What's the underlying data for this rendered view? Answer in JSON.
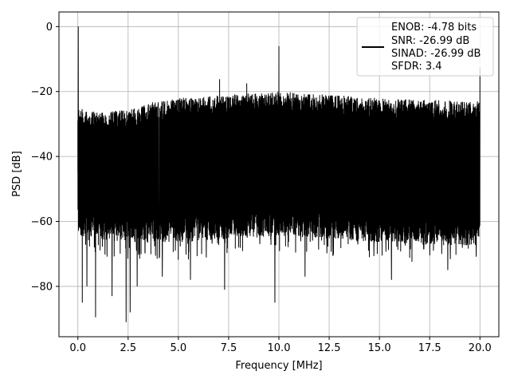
{
  "chart_data": {
    "type": "line",
    "title": "",
    "xlabel": "Frequency [MHz]",
    "ylabel": "PSD [dB]",
    "xlim": [
      -0.94,
      20.94
    ],
    "ylim": [
      -95.5,
      4.5
    ],
    "xticks": [
      0.0,
      2.5,
      5.0,
      7.5,
      10.0,
      12.5,
      15.0,
      17.5,
      20.0
    ],
    "xtick_labels": [
      "0.0",
      "2.5",
      "5.0",
      "7.5",
      "10.0",
      "12.5",
      "15.0",
      "17.5",
      "20.0"
    ],
    "yticks": [
      0,
      -20,
      -40,
      -60,
      -80
    ],
    "ytick_labels": [
      "0",
      "−20",
      "−40",
      "−60",
      "−80"
    ],
    "grid": true,
    "legend_position": "top-right",
    "series": [
      {
        "name": "",
        "color": "#000000",
        "x_range": [
          0.0,
          20.0
        ],
        "upper_envelope": [
          [
            0.0,
            -25.0
          ],
          [
            1.0,
            -26.5
          ],
          [
            2.5,
            -25.5
          ],
          [
            3.5,
            -23.5
          ],
          [
            5.0,
            -22.0
          ],
          [
            7.5,
            -21.0
          ],
          [
            10.0,
            -20.0
          ],
          [
            12.5,
            -21.0
          ],
          [
            15.0,
            -22.0
          ],
          [
            17.5,
            -22.5
          ],
          [
            20.0,
            -23.0
          ]
        ],
        "lower_envelope": [
          [
            0.0,
            -62.0
          ],
          [
            2.5,
            -64.0
          ],
          [
            5.0,
            -64.0
          ],
          [
            7.5,
            -63.0
          ],
          [
            10.0,
            -62.0
          ],
          [
            12.5,
            -63.0
          ],
          [
            15.0,
            -64.0
          ],
          [
            17.5,
            -65.0
          ],
          [
            20.0,
            -65.0
          ]
        ],
        "peaks": [
          {
            "x": 0.02,
            "y": 0.0
          },
          {
            "x": 10.0,
            "y": -6.0
          },
          {
            "x": 20.0,
            "y": -12.5
          },
          {
            "x": 7.05,
            "y": -16.2
          },
          {
            "x": 8.4,
            "y": -17.5
          }
        ],
        "dips": [
          {
            "x": 0.22,
            "y": -85.0
          },
          {
            "x": 0.45,
            "y": -80.0
          },
          {
            "x": 0.88,
            "y": -89.5
          },
          {
            "x": 1.7,
            "y": -83.0
          },
          {
            "x": 2.4,
            "y": -91.0
          },
          {
            "x": 2.6,
            "y": -88.0
          },
          {
            "x": 2.95,
            "y": -80.0
          },
          {
            "x": 4.2,
            "y": -77.0
          },
          {
            "x": 5.6,
            "y": -78.0
          },
          {
            "x": 7.3,
            "y": -81.0
          },
          {
            "x": 9.8,
            "y": -85.0
          },
          {
            "x": 11.3,
            "y": -77.0
          },
          {
            "x": 15.6,
            "y": -78.0
          },
          {
            "x": 18.4,
            "y": -75.0
          }
        ]
      }
    ],
    "legend_entries": [
      "ENOB: -4.78 bits",
      "SNR: -26.99 dB",
      "SINAD: -26.99 dB",
      "SFDR: 3.4"
    ]
  }
}
